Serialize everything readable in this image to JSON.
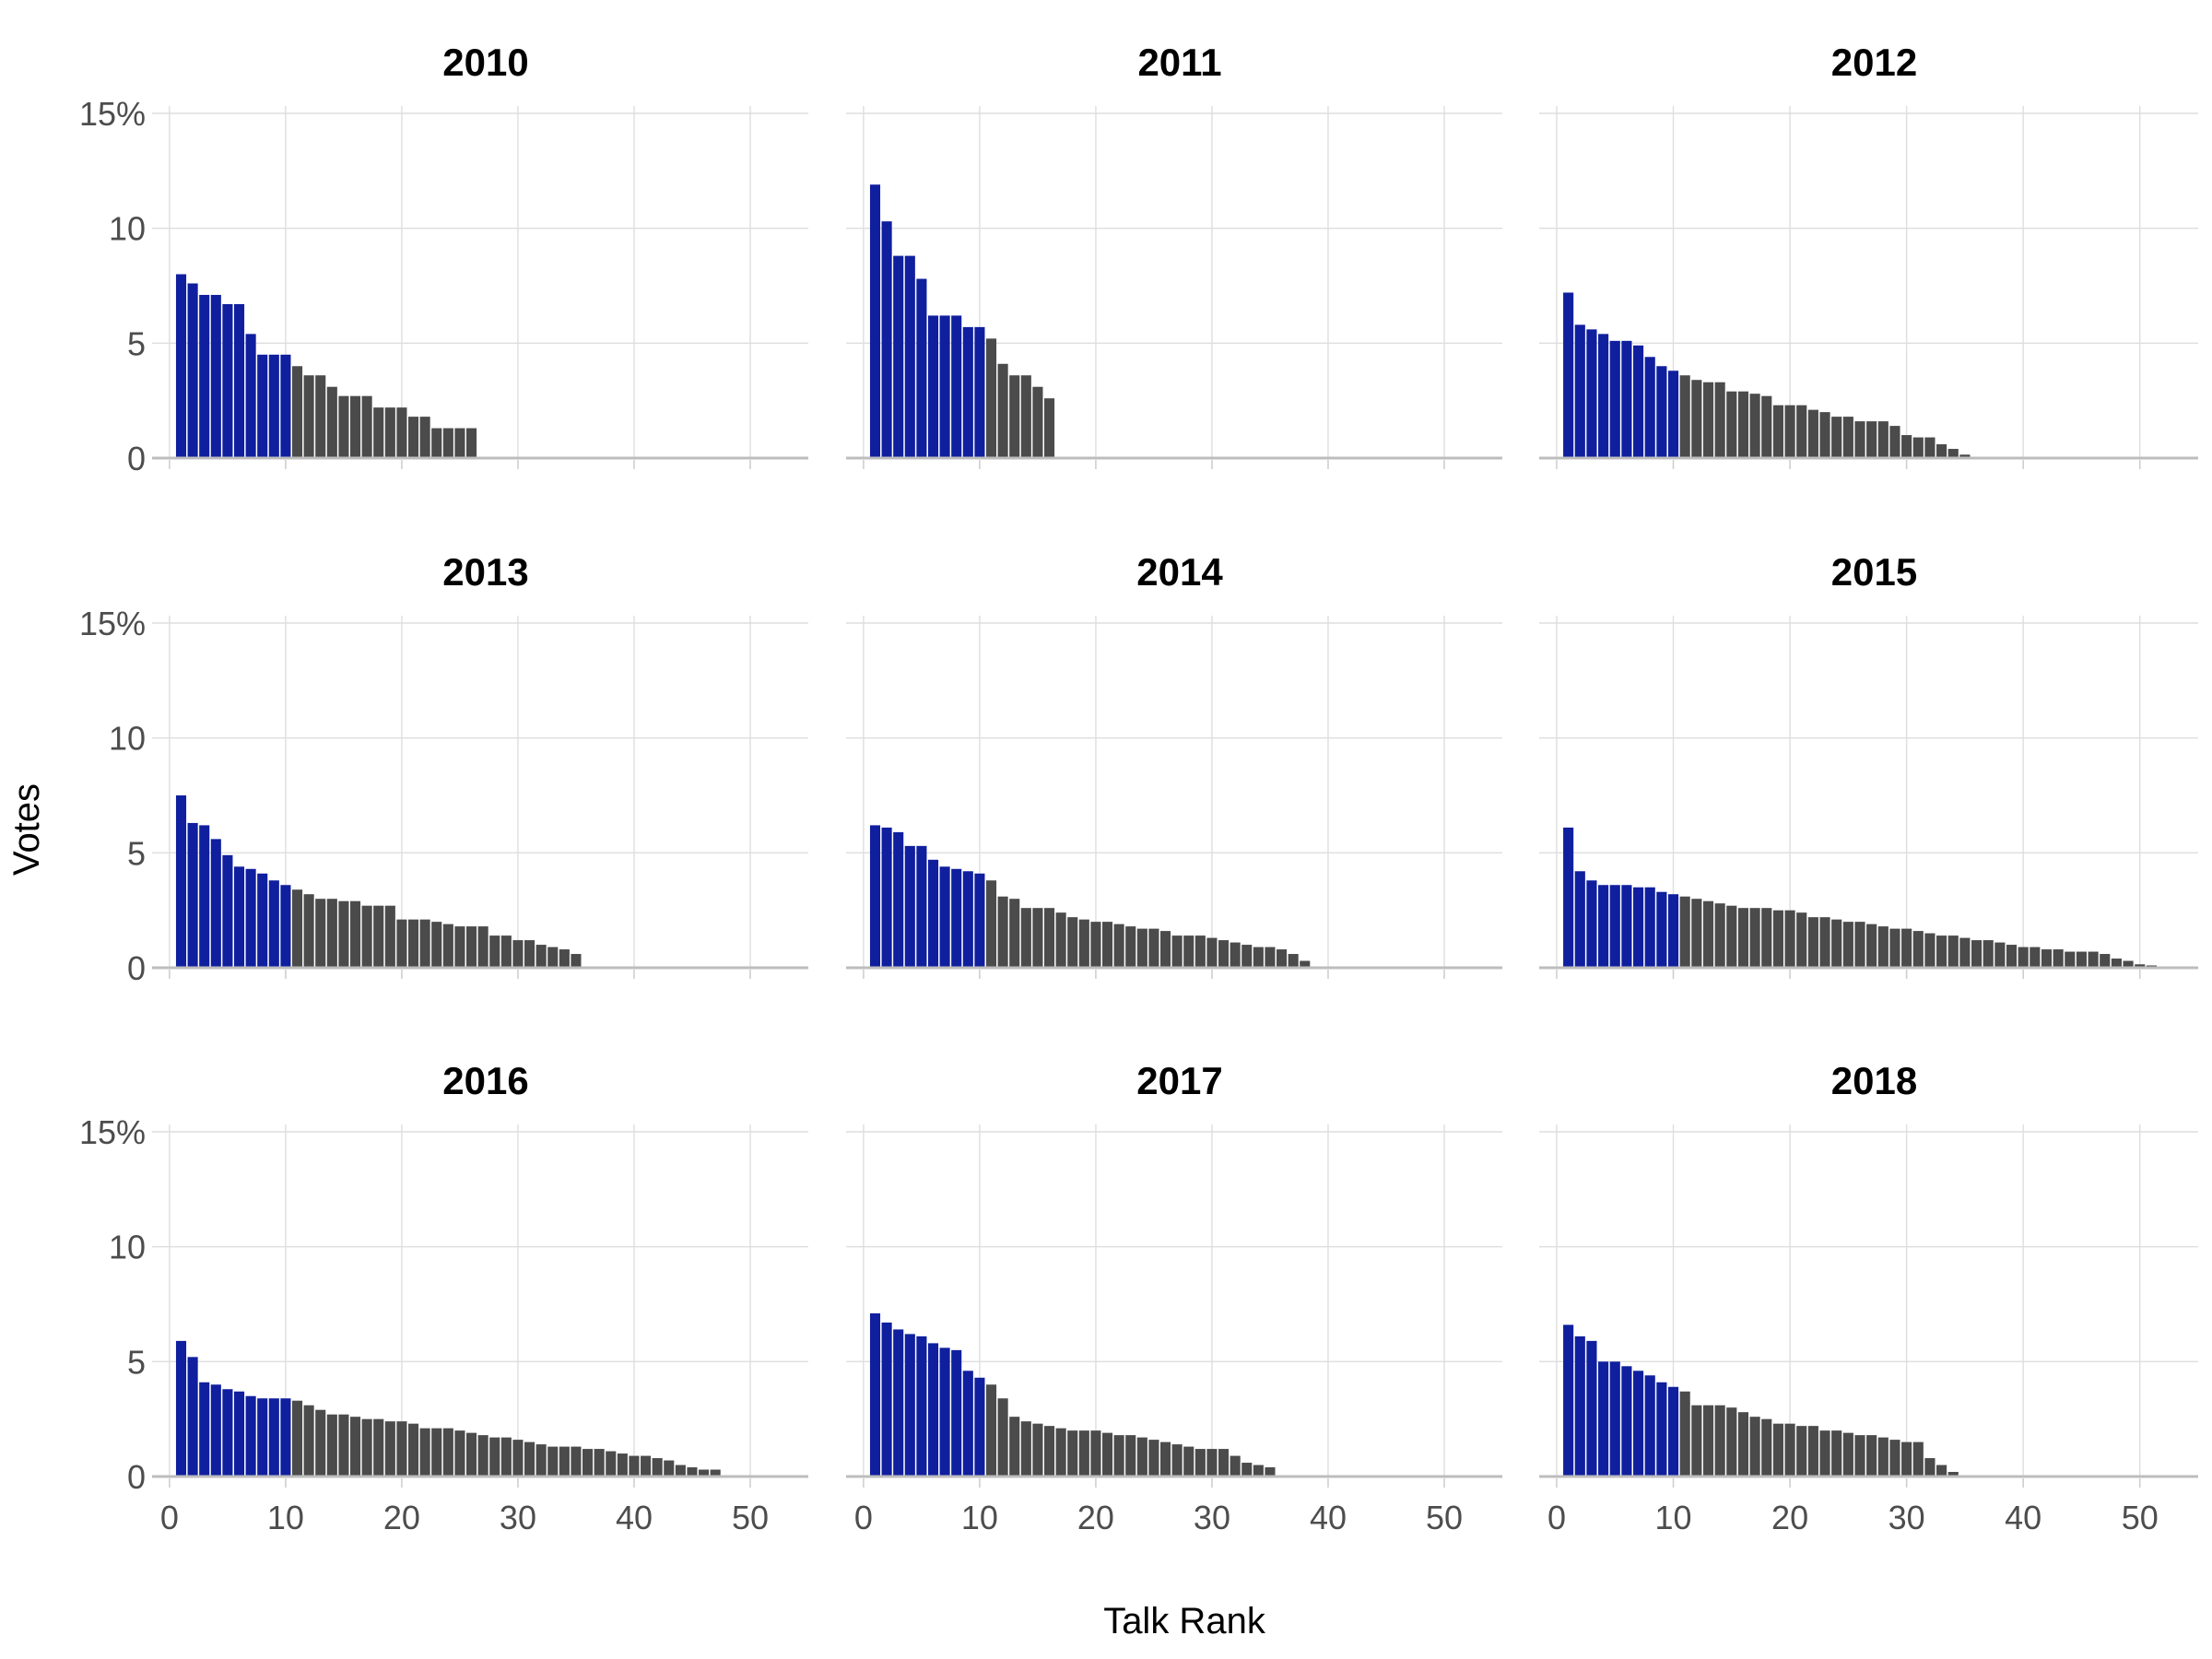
{
  "ylabel": "Votes",
  "xlabel": "Talk Rank",
  "chart_data": {
    "type": "bar",
    "layout": "3x3 facets",
    "xlabel": "Talk Rank",
    "ylabel": "Votes",
    "xlim": [
      -1.5,
      55
    ],
    "ylim": [
      0,
      15
    ],
    "x_ticks": [
      0,
      10,
      20,
      30,
      40,
      50
    ],
    "y_ticks": [
      0,
      5,
      10,
      15
    ],
    "y_tick_labels": [
      "0",
      "5",
      "10",
      "15%"
    ],
    "grid": true,
    "highlight_top_n": 10,
    "colors": {
      "top10": "#0f1f9e",
      "other": "#4b4b4b"
    },
    "panels": [
      {
        "title": "2010",
        "values": [
          8.0,
          7.6,
          7.1,
          7.1,
          6.7,
          6.7,
          5.4,
          4.5,
          4.5,
          4.5,
          4.0,
          3.6,
          3.6,
          3.1,
          2.7,
          2.7,
          2.7,
          2.2,
          2.2,
          2.2,
          1.8,
          1.8,
          1.3,
          1.3,
          1.3,
          1.3
        ]
      },
      {
        "title": "2011",
        "values": [
          11.9,
          10.3,
          8.8,
          8.8,
          7.8,
          6.2,
          6.2,
          6.2,
          5.7,
          5.7,
          5.2,
          4.1,
          3.6,
          3.6,
          3.1,
          2.6
        ]
      },
      {
        "title": "2012",
        "values": [
          7.2,
          5.8,
          5.6,
          5.4,
          5.1,
          5.1,
          4.9,
          4.4,
          4.0,
          3.8,
          3.6,
          3.4,
          3.3,
          3.3,
          2.9,
          2.9,
          2.8,
          2.7,
          2.3,
          2.3,
          2.3,
          2.1,
          2.0,
          1.8,
          1.8,
          1.6,
          1.6,
          1.6,
          1.4,
          1.0,
          0.9,
          0.9,
          0.6,
          0.4,
          0.15
        ]
      },
      {
        "title": "2013",
        "values": [
          7.5,
          6.3,
          6.2,
          5.6,
          4.9,
          4.4,
          4.3,
          4.1,
          3.8,
          3.6,
          3.4,
          3.2,
          3.0,
          3.0,
          2.9,
          2.9,
          2.7,
          2.7,
          2.7,
          2.1,
          2.1,
          2.1,
          2.0,
          1.9,
          1.8,
          1.8,
          1.8,
          1.4,
          1.4,
          1.2,
          1.2,
          1.0,
          0.9,
          0.8,
          0.6
        ]
      },
      {
        "title": "2014",
        "values": [
          6.2,
          6.1,
          5.9,
          5.3,
          5.3,
          4.7,
          4.4,
          4.3,
          4.2,
          4.1,
          3.8,
          3.1,
          3.0,
          2.6,
          2.6,
          2.6,
          2.4,
          2.2,
          2.1,
          2.0,
          2.0,
          1.9,
          1.8,
          1.7,
          1.7,
          1.6,
          1.4,
          1.4,
          1.4,
          1.3,
          1.2,
          1.1,
          1.0,
          0.9,
          0.9,
          0.8,
          0.6,
          0.3
        ]
      },
      {
        "title": "2015",
        "values": [
          6.1,
          4.2,
          3.8,
          3.6,
          3.6,
          3.6,
          3.5,
          3.5,
          3.3,
          3.2,
          3.1,
          3.0,
          2.9,
          2.8,
          2.7,
          2.6,
          2.6,
          2.6,
          2.5,
          2.5,
          2.4,
          2.2,
          2.2,
          2.1,
          2.0,
          2.0,
          1.9,
          1.8,
          1.7,
          1.7,
          1.6,
          1.5,
          1.4,
          1.4,
          1.3,
          1.2,
          1.2,
          1.1,
          1.0,
          0.9,
          0.9,
          0.8,
          0.8,
          0.7,
          0.7,
          0.7,
          0.6,
          0.4,
          0.3,
          0.15,
          0.1
        ]
      },
      {
        "title": "2016",
        "values": [
          5.9,
          5.2,
          4.1,
          4.0,
          3.8,
          3.7,
          3.5,
          3.4,
          3.4,
          3.4,
          3.3,
          3.1,
          2.9,
          2.7,
          2.7,
          2.6,
          2.5,
          2.5,
          2.4,
          2.4,
          2.3,
          2.1,
          2.1,
          2.1,
          2.0,
          1.9,
          1.8,
          1.7,
          1.7,
          1.6,
          1.5,
          1.4,
          1.3,
          1.3,
          1.3,
          1.2,
          1.2,
          1.1,
          1.0,
          0.9,
          0.9,
          0.8,
          0.7,
          0.5,
          0.4,
          0.3,
          0.3
        ]
      },
      {
        "title": "2017",
        "values": [
          7.1,
          6.7,
          6.4,
          6.2,
          6.1,
          5.8,
          5.6,
          5.5,
          4.6,
          4.3,
          4.0,
          3.4,
          2.6,
          2.4,
          2.3,
          2.2,
          2.1,
          2.0,
          2.0,
          2.0,
          1.9,
          1.8,
          1.8,
          1.7,
          1.6,
          1.5,
          1.4,
          1.3,
          1.2,
          1.2,
          1.2,
          0.9,
          0.6,
          0.5,
          0.4
        ]
      },
      {
        "title": "2018",
        "values": [
          6.6,
          6.1,
          5.9,
          5.0,
          5.0,
          4.8,
          4.6,
          4.4,
          4.1,
          3.9,
          3.7,
          3.1,
          3.1,
          3.1,
          3.0,
          2.8,
          2.6,
          2.5,
          2.3,
          2.3,
          2.2,
          2.2,
          2.0,
          2.0,
          1.9,
          1.8,
          1.8,
          1.7,
          1.6,
          1.5,
          1.5,
          0.8,
          0.5,
          0.2
        ]
      }
    ]
  }
}
